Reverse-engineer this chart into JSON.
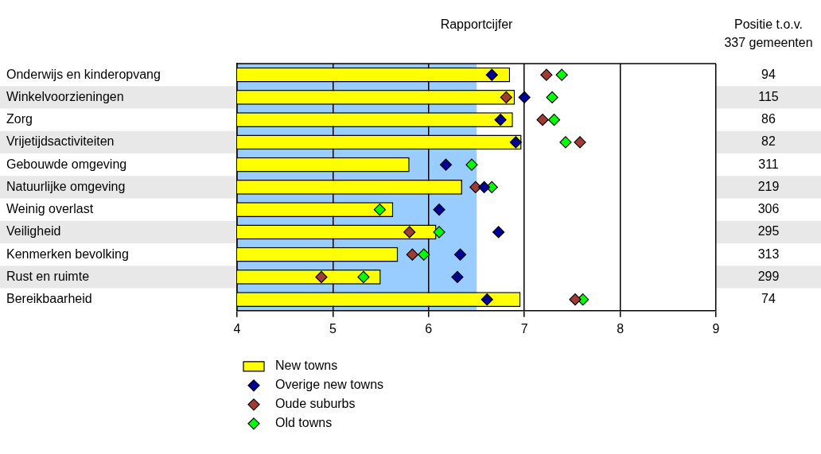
{
  "chart_data": {
    "type": "bar",
    "orientation": "horizontal",
    "title": "Rapportcijfer",
    "categories": [
      "Onderwijs en kinderopvang",
      "Winkelvoorzieningen",
      "Zorg",
      "Vrijetijdsactiviteiten",
      "Gebouwde omgeving",
      "Natuurlijke omgeving",
      "Weinig overlast",
      "Veiligheid",
      "Kenmerken bevolking",
      "Rust en ruimte",
      "Bereikbaarheid"
    ],
    "series": [
      {
        "name": "New towns",
        "color": "#ffff00",
        "values": [
          6.85,
          6.9,
          6.88,
          6.97,
          5.8,
          6.35,
          5.63,
          6.08,
          5.68,
          5.5,
          6.96
        ]
      },
      {
        "name": "Overige new towns",
        "type": "scatter",
        "color": "#000099",
        "values": [
          6.66,
          7.0,
          6.75,
          6.91,
          6.18,
          6.58,
          6.11,
          6.73,
          6.33,
          6.3,
          6.61
        ]
      },
      {
        "name": "Oude suburbs",
        "type": "scatter",
        "color": "#a33b35",
        "values": [
          7.23,
          6.81,
          7.19,
          7.58,
          null,
          6.49,
          null,
          5.8,
          5.83,
          4.88,
          7.53
        ]
      },
      {
        "name": "Old towns",
        "type": "scatter",
        "color": "#00ff00",
        "values": [
          7.39,
          7.29,
          7.31,
          7.43,
          6.45,
          6.66,
          5.49,
          6.11,
          5.95,
          5.32,
          7.61
        ]
      }
    ],
    "xlim": [
      4,
      9
    ],
    "xticks": [
      4,
      5,
      6,
      7,
      8,
      9
    ],
    "grid": "x",
    "legend": "bottom",
    "marker": "diamond",
    "bands": [
      {
        "axis": "x",
        "from": 4,
        "to": 6.5,
        "color": "#99ccff"
      }
    ],
    "annotations": [
      "Positie t.o.v.",
      "337 gemeenten",
      "94",
      "115",
      "86",
      "82",
      "311",
      "219",
      "306",
      "295",
      "313",
      "299",
      "74"
    ]
  }
}
